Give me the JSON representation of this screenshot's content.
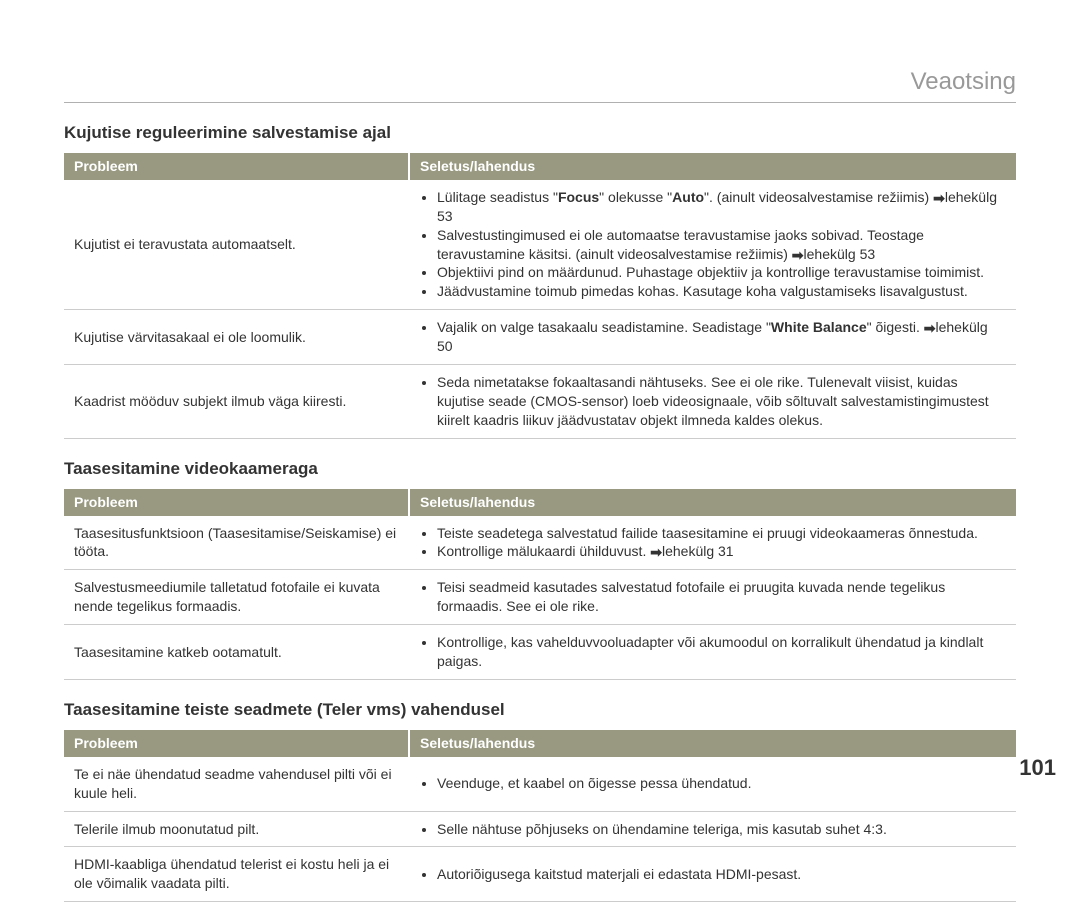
{
  "page": {
    "title": "Veaotsing",
    "number": "101"
  },
  "style": {
    "header_bg": "#989980",
    "header_text": "#ffffff",
    "row_border": "#cccccc",
    "page_title_color": "#999999",
    "text_color": "#333333",
    "arrow_glyph": "➡"
  },
  "headers": {
    "problem": "Probleem",
    "solution": "Seletus/lahendus"
  },
  "sections": [
    {
      "heading": "Kujutise reguleerimine salvestamise ajal",
      "rows": [
        {
          "problem": "Kujutist ei teravustata automaatselt.",
          "solutions": [
            {
              "pre": "Lülitage seadistus \"",
              "b1": "Focus",
              "mid": "\" olekusse \"",
              "b2": "Auto",
              "post": "\". (ainult videosalvestamise režiimis) ",
              "arrow": true,
              "tail": "lehekülg 53"
            },
            {
              "pre": "Salvestustingimused ei ole automaatse teravustamise jaoks sobivad. Teostage teravustamine käsitsi. (ainult videosalvestamise režiimis) ",
              "arrow": true,
              "tail": "lehekülg 53"
            },
            {
              "pre": "Objektiivi pind on määrdunud. Puhastage objektiiv ja kontrollige teravustamise toimimist."
            },
            {
              "pre": "Jäädvustamine toimub pimedas kohas. Kasutage koha valgustamiseks lisavalgustust."
            }
          ]
        },
        {
          "problem": "Kujutise värvitasakaal ei ole loomulik.",
          "solutions": [
            {
              "pre": "Vajalik on valge tasakaalu seadistamine. Seadistage \"",
              "b1": "White Balance",
              "post": "\" õigesti. ",
              "arrow": true,
              "tail": "lehekülg 50"
            }
          ]
        },
        {
          "problem": "Kaadrist mööduv subjekt ilmub väga kiiresti.",
          "solutions": [
            {
              "pre": "Seda nimetatakse fokaaltasandi nähtuseks. See ei ole rike. Tulenevalt viisist, kuidas kujutise seade (CMOS-sensor) loeb videosignaale, võib sõltuvalt salvestamistingimustest kiirelt kaadris liikuv jäädvustatav objekt ilmneda kaldes olekus."
            }
          ]
        }
      ]
    },
    {
      "heading": "Taasesitamine videokaameraga",
      "rows": [
        {
          "problem": "Taasesitusfunktsioon (Taasesitamise/Seiskamise) ei tööta.",
          "solutions": [
            {
              "pre": "Teiste seadetega salvestatud failide taasesitamine ei pruugi videokaameras õnnestuda."
            },
            {
              "pre": "Kontrollige mälukaardi ühilduvust. ",
              "arrow": true,
              "tail": "lehekülg 31"
            }
          ]
        },
        {
          "problem": "Salvestusmeediumile talletatud fotofaile ei kuvata nende tegelikus formaadis.",
          "solutions": [
            {
              "pre": "Teisi seadmeid kasutades salvestatud fotofaile ei pruugita kuvada nende tegelikus formaadis. See ei ole rike."
            }
          ]
        },
        {
          "problem": "Taasesitamine katkeb ootamatult.",
          "solutions": [
            {
              "pre": "Kontrollige, kas vahelduvvooluadapter või akumoodul on korralikult ühendatud ja kindlalt paigas."
            }
          ]
        }
      ]
    },
    {
      "heading": "Taasesitamine teiste seadmete (Teler vms) vahendusel",
      "rows": [
        {
          "problem": "Te ei näe ühendatud seadme vahendusel pilti või ei kuule heli.",
          "solutions": [
            {
              "pre": "Veenduge, et kaabel on õigesse pessa ühendatud."
            }
          ]
        },
        {
          "problem": "Telerile ilmub moonutatud pilt.",
          "solutions": [
            {
              "pre": "Selle nähtuse põhjuseks on ühendamine teleriga, mis kasutab suhet 4:3."
            }
          ]
        },
        {
          "problem": "HDMI-kaabliga ühendatud telerist ei kostu heli ja ei ole võimalik vaadata pilti.",
          "solutions": [
            {
              "pre": "Autoriõigusega kaitstud materjali ei edastata HDMI-pesast."
            }
          ]
        }
      ]
    }
  ]
}
